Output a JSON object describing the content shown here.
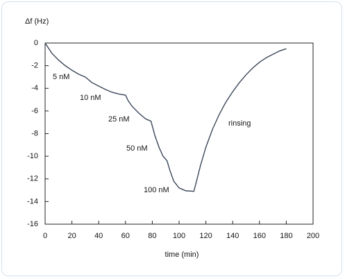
{
  "chart_data": {
    "type": "line",
    "y_label": "Δf (Hz)",
    "x_label": "time (min)",
    "x": [
      0,
      5,
      10,
      15,
      20,
      25,
      30,
      35,
      40,
      45,
      50,
      55,
      60,
      62,
      65,
      70,
      75,
      79,
      82,
      85,
      88,
      91,
      93,
      96,
      100,
      105,
      111,
      113,
      116,
      120,
      125,
      130,
      135,
      140,
      145,
      150,
      155,
      160,
      165,
      170,
      175,
      180
    ],
    "series": [
      {
        "color": "#3a4658",
        "values": [
          0,
          -0.9,
          -1.5,
          -2.0,
          -2.4,
          -2.75,
          -3.0,
          -3.5,
          -3.8,
          -4.1,
          -4.35,
          -4.5,
          -4.6,
          -5.1,
          -5.6,
          -6.2,
          -6.7,
          -6.9,
          -8.2,
          -9.2,
          -10.0,
          -10.4,
          -11.2,
          -12.2,
          -12.8,
          -13.05,
          -13.1,
          -12.2,
          -10.8,
          -9.2,
          -7.6,
          -6.3,
          -5.2,
          -4.3,
          -3.5,
          -2.8,
          -2.2,
          -1.7,
          -1.3,
          -1.0,
          -0.7,
          -0.5
        ]
      }
    ],
    "xlim": [
      0,
      200
    ],
    "ylim": [
      -16,
      0
    ],
    "xticks": [
      0,
      20,
      40,
      60,
      80,
      100,
      120,
      140,
      160,
      180,
      200
    ],
    "yticks": [
      0,
      -2,
      -4,
      -6,
      -8,
      -10,
      -12,
      -14,
      -16
    ],
    "annotations": [
      "5 nM",
      "10 nM",
      "25 nM",
      "50 nM",
      "100 nM",
      "rinsing"
    ]
  }
}
